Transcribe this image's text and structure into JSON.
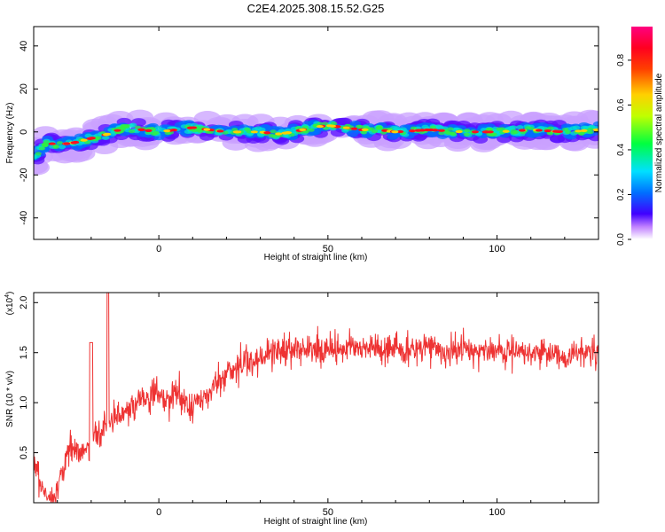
{
  "title": "C2E4.2025.308.15.52.G25",
  "colors": {
    "accent": "#ee3333",
    "axis": "#000000"
  },
  "chart_data": [
    {
      "type": "heatmap",
      "title": "C2E4.2025.308.15.52.G25",
      "xlabel": "Height of straight line (km)",
      "ylabel": "Frequency (Hz)",
      "xlim": [
        -37,
        130
      ],
      "ylim": [
        -50,
        49
      ],
      "x_ticks": [
        0,
        50,
        100
      ],
      "y_ticks": [
        40,
        20,
        0,
        -20,
        -40
      ],
      "x_tick_labels": [
        "0",
        "50",
        "100"
      ],
      "y_tick_labels": [
        "40",
        "20",
        "0",
        "-20",
        "-40"
      ],
      "colorbar": {
        "label": "Normalized spectral amplitude",
        "range": [
          0,
          0.95
        ],
        "ticks": [
          0.0,
          0.2,
          0.4,
          0.6,
          0.8
        ],
        "tick_labels": [
          "0.0",
          "0.2",
          "0.4",
          "0.6",
          "0.8"
        ]
      },
      "ridge": {
        "x": [
          -37,
          -35,
          -33,
          -30,
          -25,
          -20,
          -15,
          -10,
          -5,
          0,
          5,
          10,
          15,
          20,
          25,
          30,
          35,
          40,
          45,
          50,
          55,
          60,
          65,
          70,
          80,
          90,
          100,
          110,
          120,
          130
        ],
        "frequency": [
          -12,
          -8,
          -5,
          -6,
          -5,
          -3,
          -1,
          2,
          1,
          0,
          1,
          2,
          1,
          0,
          0,
          0,
          -1,
          0,
          2,
          3,
          2,
          1,
          1,
          0,
          1,
          0,
          0,
          1,
          0,
          1
        ]
      }
    },
    {
      "type": "line",
      "xlabel": "Height of straight line (km)",
      "ylabel": "SNR (10 * v/v)",
      "y_multiplier_label": "(x10",
      "y_multiplier_exp": "4",
      "xlim": [
        -37,
        130
      ],
      "ylim": [
        0.0,
        2.1
      ],
      "x_ticks": [
        0,
        50,
        100
      ],
      "y_ticks": [
        0.5,
        1.0,
        1.5,
        2.0
      ],
      "x_tick_labels": [
        "0",
        "50",
        "100"
      ],
      "y_tick_labels": [
        "0.5",
        "1.0",
        "1.5",
        "2.0"
      ],
      "series": [
        {
          "color": "#ee3333",
          "x": [
            -37,
            -35,
            -33,
            -31,
            -29,
            -27,
            -25,
            -23,
            -21,
            -19,
            -17,
            -15,
            -13,
            -11,
            -9,
            -7,
            -5,
            -3,
            -1,
            1,
            3,
            5,
            7,
            9,
            11,
            13,
            15,
            17,
            19,
            21,
            23,
            25,
            27,
            29,
            31,
            33,
            35,
            37,
            40,
            45,
            50,
            55,
            60,
            65,
            70,
            75,
            80,
            85,
            90,
            95,
            100,
            105,
            110,
            115,
            120,
            125,
            130
          ],
          "values": [
            0.4,
            0.2,
            0.05,
            0.05,
            0.25,
            0.5,
            0.55,
            0.5,
            0.55,
            0.7,
            0.7,
            0.8,
            0.85,
            0.9,
            0.95,
            1.0,
            1.05,
            1.05,
            1.1,
            1.05,
            1.0,
            1.1,
            1.05,
            0.95,
            1.0,
            1.05,
            1.1,
            1.2,
            1.25,
            1.3,
            1.35,
            1.4,
            1.4,
            1.45,
            1.45,
            1.5,
            1.5,
            1.5,
            1.55,
            1.52,
            1.55,
            1.55,
            1.55,
            1.52,
            1.55,
            1.5,
            1.55,
            1.5,
            1.55,
            1.5,
            1.52,
            1.5,
            1.5,
            1.5,
            1.45,
            1.5,
            1.5
          ]
        }
      ]
    }
  ]
}
